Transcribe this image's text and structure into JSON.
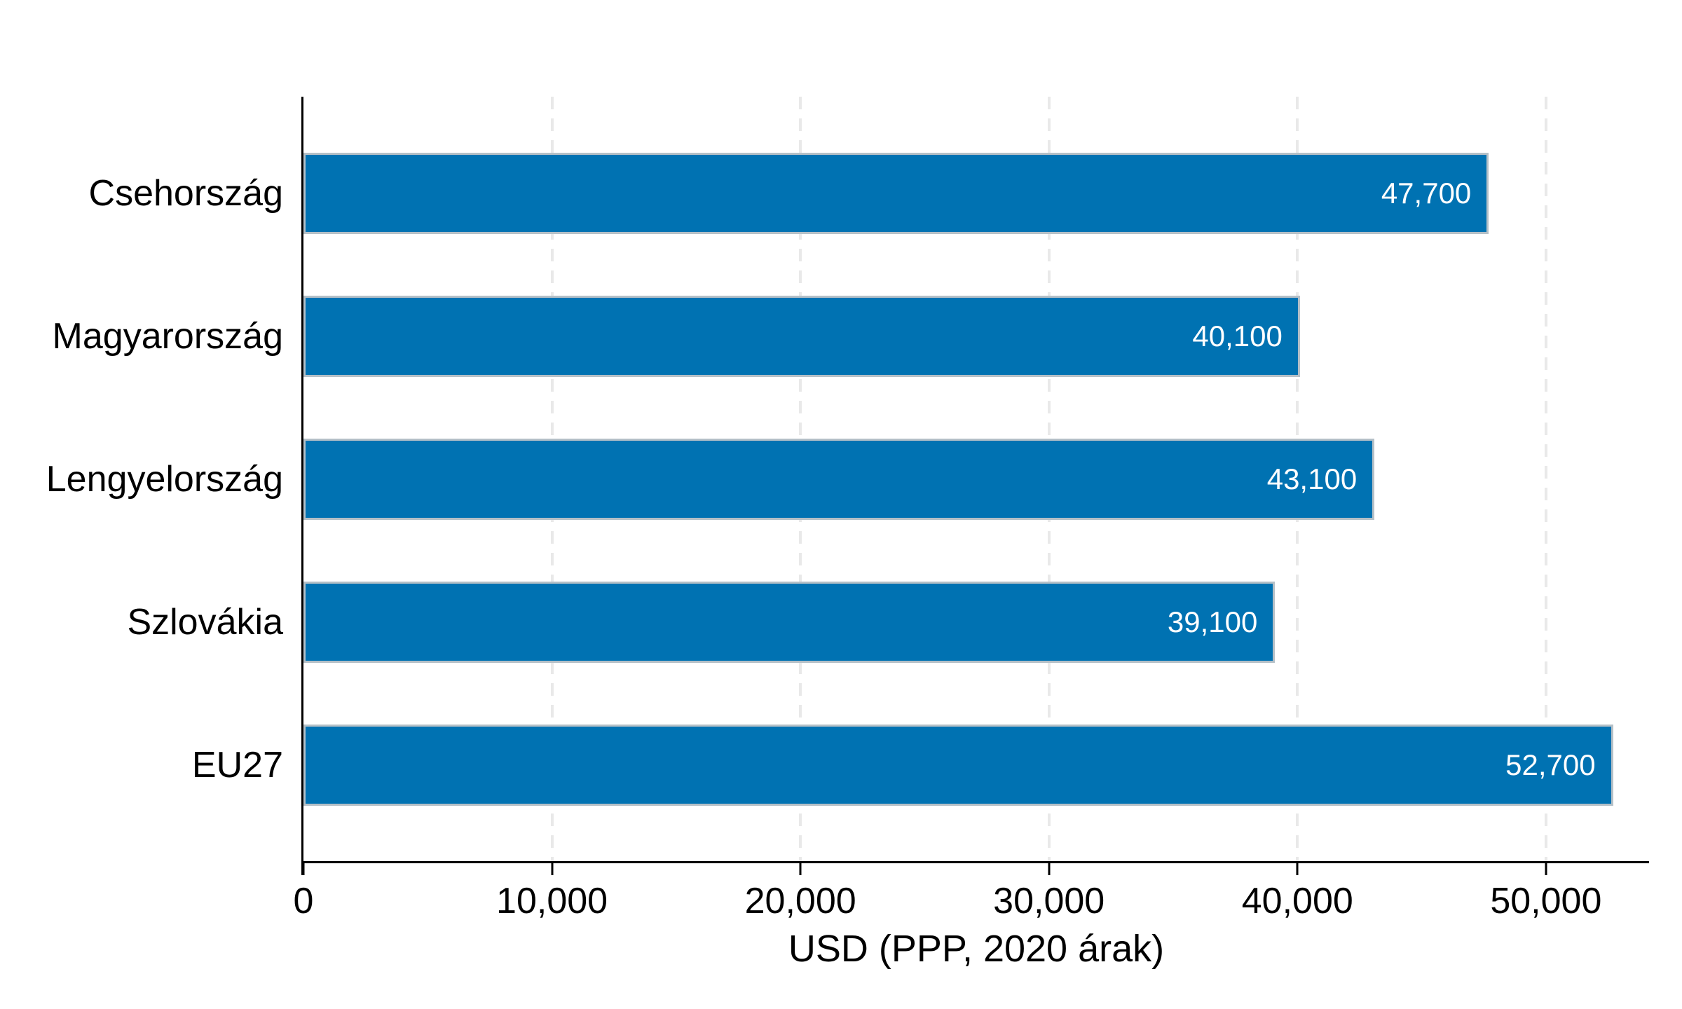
{
  "chart_data": {
    "type": "bar",
    "orientation": "horizontal",
    "categories": [
      "Csehország",
      "Magyarország",
      "Lengyelország",
      "Szlovákia",
      "EU27"
    ],
    "values": [
      47700,
      40100,
      43100,
      39100,
      52700
    ],
    "value_labels": [
      "47,700",
      "40,100",
      "43,100",
      "39,100",
      "52,700"
    ],
    "xlabel": "USD (PPP, 2020 árak)",
    "xticks": [
      0,
      10000,
      20000,
      30000,
      40000,
      50000
    ],
    "xtick_labels": [
      "0",
      "10,000",
      "20,000",
      "30,000",
      "40,000",
      "50,000"
    ],
    "xlim": [
      0,
      54150
    ],
    "grid": "vertical-dashed",
    "legend": "none",
    "colors": {
      "bar": "#0072b2",
      "bar_border": "#b5c0c7",
      "gridline": "#e9e9e9",
      "axis": "#000000",
      "value_label": "#ffffff",
      "text": "#000000",
      "background": "#ffffff"
    }
  }
}
